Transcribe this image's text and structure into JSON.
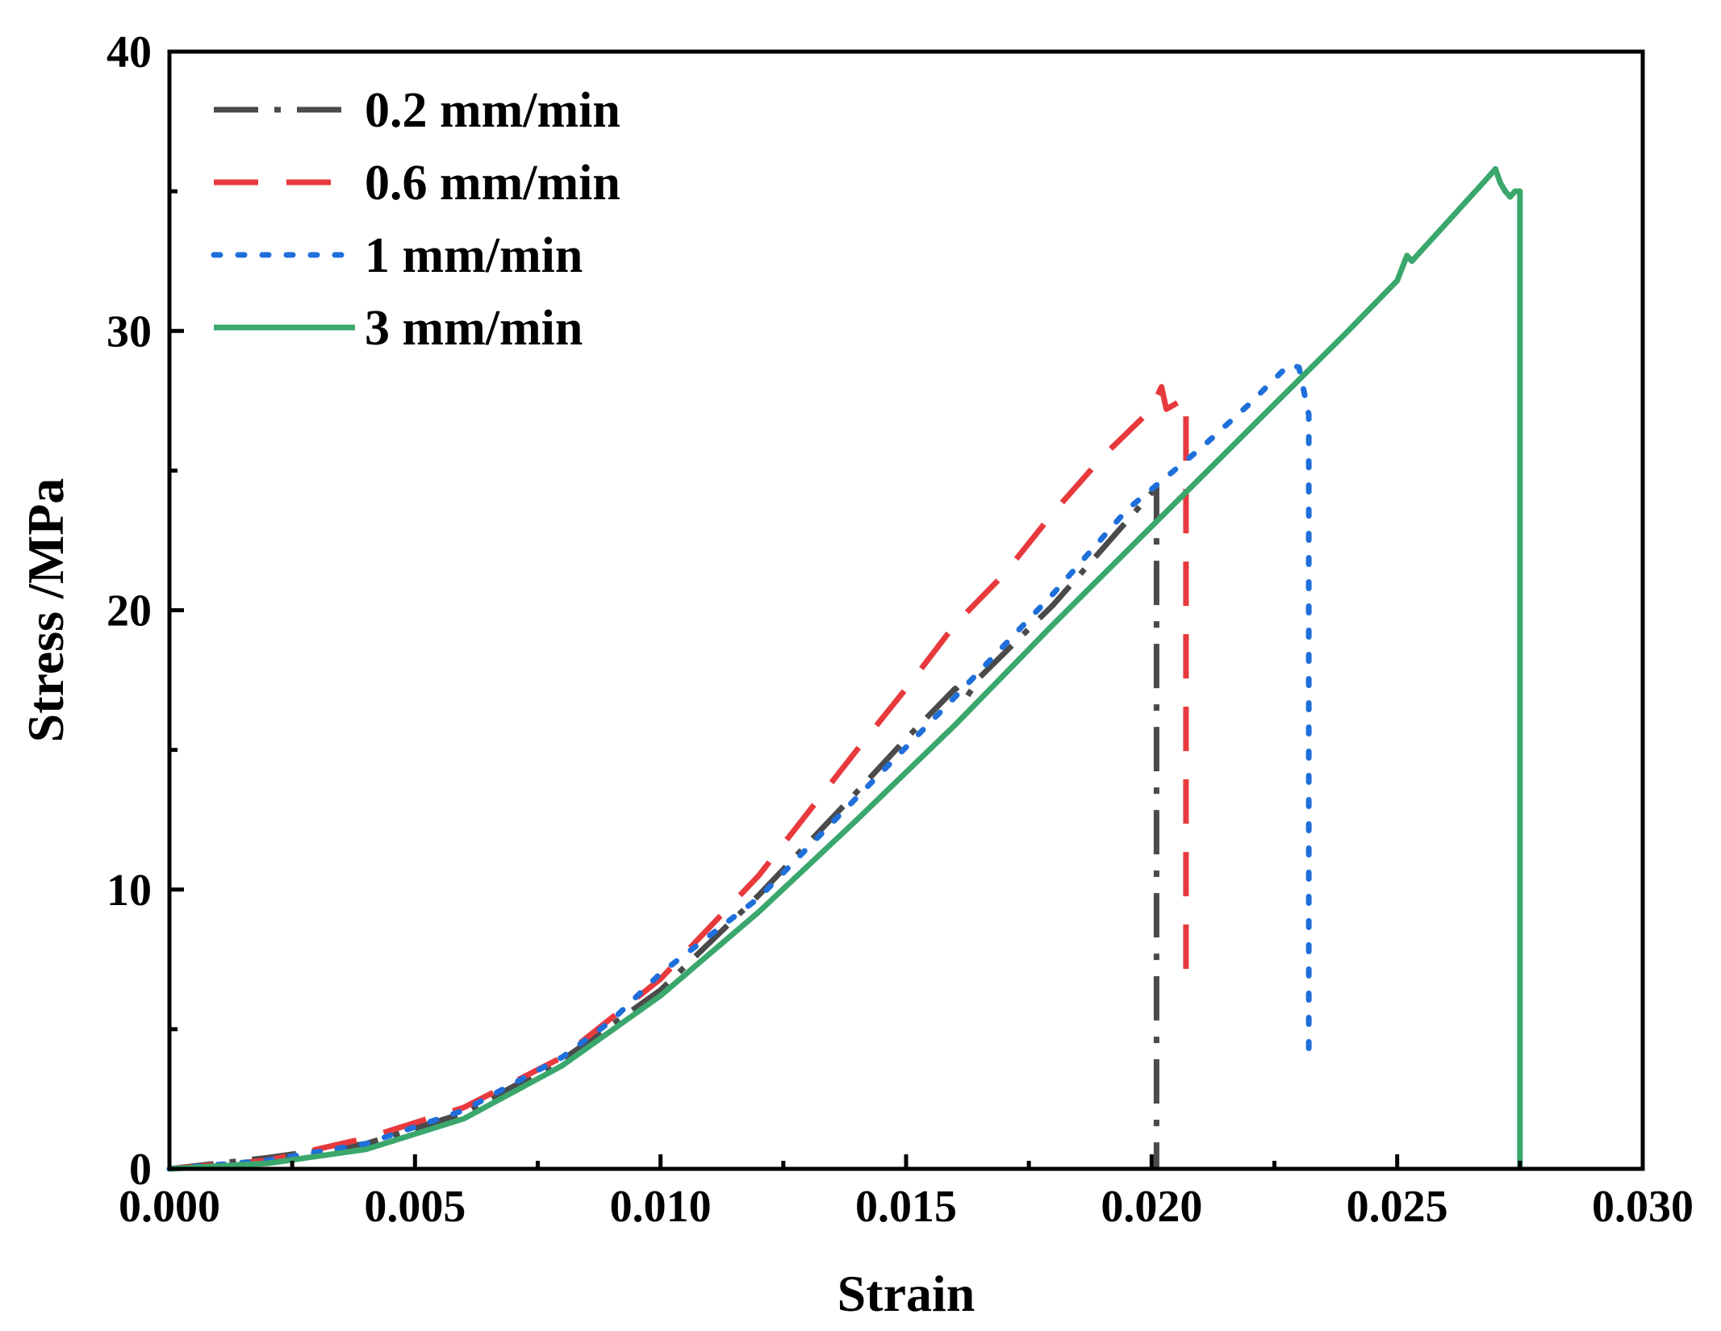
{
  "chart_data": {
    "type": "line",
    "title": "",
    "xlabel": "Strain",
    "ylabel": "Stress /MPa",
    "xlim": [
      0.0,
      0.03
    ],
    "ylim": [
      0,
      40
    ],
    "x_ticks": [
      "0.000",
      "0.005",
      "0.010",
      "0.015",
      "0.020",
      "0.025",
      "0.030"
    ],
    "y_ticks": [
      "0",
      "10",
      "20",
      "30",
      "40"
    ],
    "grid": false,
    "legend_position": "top-left",
    "series": [
      {
        "name": "0.2 mm/min",
        "color": "#4a4a4a",
        "style": "dash-dot",
        "points": [
          [
            0.0,
            0.0
          ],
          [
            0.002,
            0.4
          ],
          [
            0.004,
            0.9
          ],
          [
            0.006,
            2.0
          ],
          [
            0.008,
            3.9
          ],
          [
            0.01,
            6.4
          ],
          [
            0.012,
            9.8
          ],
          [
            0.014,
            13.5
          ],
          [
            0.015,
            15.4
          ],
          [
            0.016,
            17.2
          ],
          [
            0.0162,
            16.8
          ],
          [
            0.0165,
            17.6
          ],
          [
            0.018,
            20.2
          ],
          [
            0.0195,
            23.2
          ],
          [
            0.0201,
            24.4
          ],
          [
            0.0201,
            23.0
          ],
          [
            0.0201,
            0.0
          ]
        ]
      },
      {
        "name": "0.6 mm/min",
        "color": "#e8393d",
        "style": "dashed",
        "points": [
          [
            0.0,
            0.0
          ],
          [
            0.002,
            0.3
          ],
          [
            0.004,
            1.1
          ],
          [
            0.006,
            2.2
          ],
          [
            0.008,
            4.0
          ],
          [
            0.01,
            6.8
          ],
          [
            0.012,
            10.5
          ],
          [
            0.014,
            15.0
          ],
          [
            0.015,
            17.2
          ],
          [
            0.016,
            19.5
          ],
          [
            0.017,
            21.3
          ],
          [
            0.018,
            23.5
          ],
          [
            0.019,
            25.5
          ],
          [
            0.02,
            27.2
          ],
          [
            0.0202,
            28.0
          ],
          [
            0.0203,
            27.2
          ],
          [
            0.0207,
            27.6
          ],
          [
            0.0207,
            7.0
          ]
        ]
      },
      {
        "name": "1 mm/min",
        "color": "#1f6fdb",
        "style": "dotted",
        "points": [
          [
            0.0,
            0.0
          ],
          [
            0.002,
            0.3
          ],
          [
            0.004,
            0.9
          ],
          [
            0.006,
            2.1
          ],
          [
            0.008,
            4.0
          ],
          [
            0.009,
            5.3
          ],
          [
            0.01,
            7.0
          ],
          [
            0.012,
            9.7
          ],
          [
            0.014,
            13.3
          ],
          [
            0.016,
            16.9
          ],
          [
            0.018,
            20.6
          ],
          [
            0.0195,
            23.6
          ],
          [
            0.021,
            25.8
          ],
          [
            0.022,
            27.4
          ],
          [
            0.0228,
            28.8
          ],
          [
            0.023,
            28.7
          ],
          [
            0.0232,
            27.0
          ],
          [
            0.0232,
            4.3
          ]
        ]
      },
      {
        "name": "3 mm/min",
        "color": "#3aa76d",
        "style": "solid",
        "points": [
          [
            0.0,
            0.0
          ],
          [
            0.002,
            0.2
          ],
          [
            0.004,
            0.7
          ],
          [
            0.006,
            1.8
          ],
          [
            0.008,
            3.7
          ],
          [
            0.01,
            6.2
          ],
          [
            0.012,
            9.2
          ],
          [
            0.014,
            12.5
          ],
          [
            0.016,
            15.9
          ],
          [
            0.018,
            19.5
          ],
          [
            0.02,
            23.0
          ],
          [
            0.022,
            26.5
          ],
          [
            0.024,
            30.0
          ],
          [
            0.025,
            31.8
          ],
          [
            0.0252,
            32.7
          ],
          [
            0.0253,
            32.5
          ],
          [
            0.0268,
            35.4
          ],
          [
            0.027,
            35.8
          ],
          [
            0.0271,
            35.3
          ],
          [
            0.0272,
            35.0
          ],
          [
            0.0273,
            34.8
          ],
          [
            0.0274,
            35.0
          ],
          [
            0.0275,
            35.0
          ],
          [
            0.0275,
            0.0
          ]
        ]
      }
    ]
  }
}
